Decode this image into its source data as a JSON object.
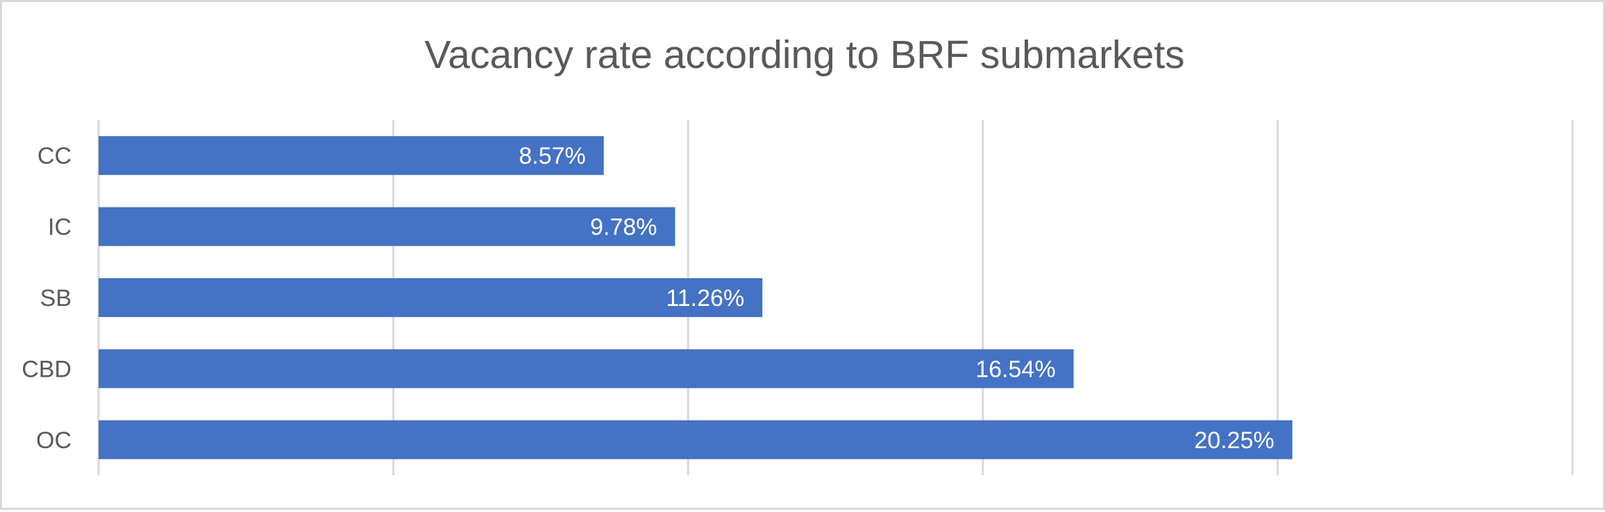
{
  "chart_data": {
    "type": "bar",
    "orientation": "horizontal",
    "title": "Vacancy rate according to BRF submarkets",
    "categories": [
      "CC",
      "IC",
      "SB",
      "CBD",
      "OC"
    ],
    "values": [
      8.57,
      9.78,
      11.26,
      16.54,
      20.25
    ],
    "data_labels": [
      "8.57%",
      "9.78%",
      "11.26%",
      "16.54%",
      "20.25%"
    ],
    "xlim": [
      0,
      25
    ],
    "grid": true,
    "legend": "none",
    "bar_color": "#4472C4"
  }
}
